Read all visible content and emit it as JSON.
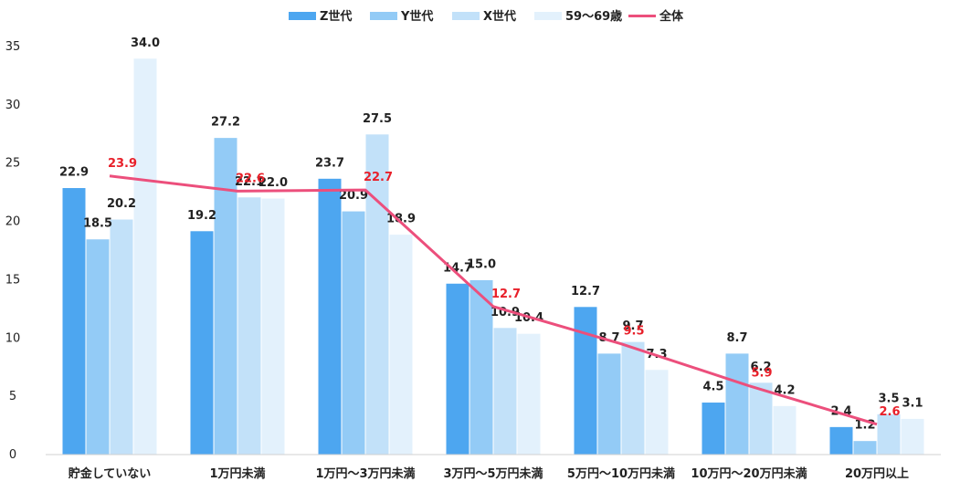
{
  "chart_data": {
    "type": "bar",
    "title": "",
    "xlabel": "",
    "ylabel": "",
    "ylim": [
      0,
      35
    ],
    "yticks": [
      "0",
      "5",
      "10",
      "15",
      "20",
      "25",
      "30",
      "35"
    ],
    "ytick_values": [
      0,
      5,
      10,
      15,
      20,
      25,
      30,
      35
    ],
    "grid": false,
    "legend_position": "top-center",
    "categories": [
      "貯金していない",
      "1万円未満",
      "1万円～3万円未満",
      "3万円～5万円未満",
      "5万円～10万円未満",
      "10万円～20万円未満",
      "20万円以上"
    ],
    "series": [
      {
        "name": "Z世代",
        "kind": "bar",
        "color": "#4da6f0",
        "values": [
          22.9,
          19.2,
          23.7,
          14.7,
          12.7,
          4.5,
          2.4
        ],
        "labels": [
          "22.9",
          "19.2",
          "23.7",
          "14.7",
          "12.7",
          "4.5",
          "2.4"
        ]
      },
      {
        "name": "Y世代",
        "kind": "bar",
        "color": "#93cbf6",
        "values": [
          18.5,
          27.2,
          20.9,
          15.0,
          8.7,
          8.7,
          1.2
        ],
        "labels": [
          "18.5",
          "27.2",
          "20.9",
          "15.0",
          "8.7",
          "8.7",
          "1.2"
        ]
      },
      {
        "name": "X世代",
        "kind": "bar",
        "color": "#c2e1f9",
        "values": [
          20.2,
          22.1,
          27.5,
          10.9,
          9.7,
          6.2,
          3.5
        ],
        "labels": [
          "20.2",
          "22.1",
          "27.5",
          "10.9",
          "9.7",
          "6.2",
          "3.5"
        ]
      },
      {
        "name": "59～69歳",
        "kind": "bar",
        "color": "#e3f1fc",
        "values": [
          34.0,
          22.0,
          18.9,
          10.4,
          7.3,
          4.2,
          3.1
        ],
        "labels": [
          "34.0",
          "22.0",
          "18.9",
          "10.4",
          "7.3",
          "4.2",
          "3.1"
        ]
      },
      {
        "name": "全体",
        "kind": "line",
        "color": "#ec4f7c",
        "label_color": "#e8202a",
        "values": [
          23.9,
          22.6,
          22.7,
          12.7,
          9.5,
          5.9,
          2.6
        ],
        "labels": [
          "23.9",
          "22.6",
          "22.7",
          "12.7",
          "9.5",
          "5.9",
          "2.6"
        ]
      }
    ]
  }
}
